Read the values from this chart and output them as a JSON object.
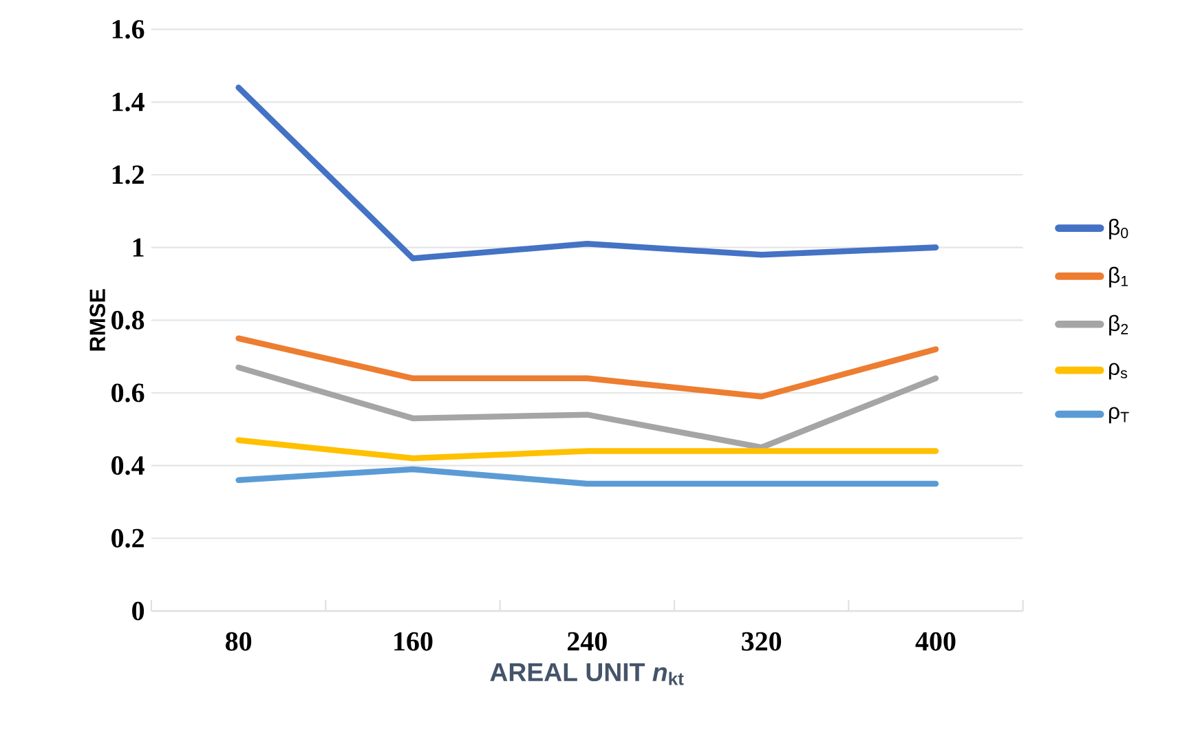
{
  "chart_data": {
    "type": "line",
    "xlabel": "AREAL UNIT *n*$_{kt}$",
    "ylabel": "RMSE",
    "categories": [
      "80",
      "160",
      "240",
      "320",
      "400"
    ],
    "series": [
      {
        "name": "β$_{0}$",
        "color": "#4472c4",
        "values": [
          1.44,
          0.97,
          1.01,
          0.98,
          1.0
        ]
      },
      {
        "name": "β$_{1}$",
        "color": "#ed7d31",
        "values": [
          0.75,
          0.64,
          0.64,
          0.59,
          0.72
        ]
      },
      {
        "name": "β$_{2}$",
        "color": "#a5a5a5",
        "values": [
          0.67,
          0.53,
          0.54,
          0.45,
          0.64
        ]
      },
      {
        "name": "ρ$_{s}$",
        "color": "#ffc000",
        "values": [
          0.47,
          0.42,
          0.44,
          0.44,
          0.44
        ]
      },
      {
        "name": "ρ$_{T}$",
        "color": "#5b9bd5",
        "values": [
          0.36,
          0.39,
          0.35,
          0.35,
          0.35
        ]
      }
    ],
    "ylim": [
      0,
      1.6
    ],
    "yticks": [
      0,
      0.2,
      0.4,
      0.6,
      0.8,
      1,
      1.2,
      1.4,
      1.6
    ],
    "grid": "y",
    "legend": "right",
    "line_style": "solid",
    "marker": "none"
  }
}
